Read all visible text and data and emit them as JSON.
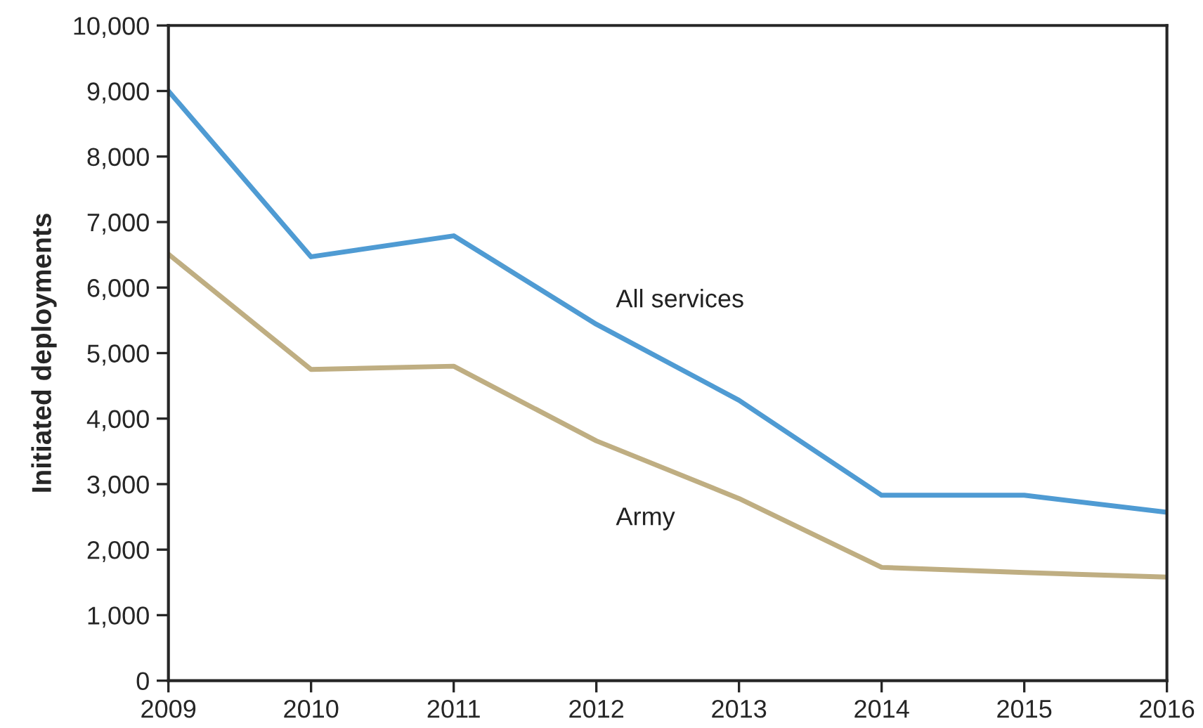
{
  "chart_data": {
    "type": "line",
    "ylabel": "Initiated deployments",
    "x": [
      2009,
      2010,
      2011,
      2012,
      2013,
      2014,
      2015,
      2016
    ],
    "series": [
      {
        "name": "All services",
        "color": "#4f9bd3",
        "values": [
          9000,
          6470,
          6790,
          5440,
          4280,
          2830,
          2830,
          2570
        ]
      },
      {
        "name": "Army",
        "color": "#bfae82",
        "values": [
          6510,
          4750,
          4800,
          3660,
          2780,
          1730,
          1650,
          1580
        ]
      }
    ],
    "xlim": [
      2009,
      2016
    ],
    "xticks": [
      2009,
      2010,
      2011,
      2012,
      2013,
      2014,
      2015,
      2016
    ],
    "ylim": [
      0,
      10000
    ],
    "yticks": [
      {
        "value": 0,
        "label": "0"
      },
      {
        "value": 1000,
        "label": "1,000"
      },
      {
        "value": 2000,
        "label": "2,000"
      },
      {
        "value": 3000,
        "label": "3,000"
      },
      {
        "value": 4000,
        "label": "4,000"
      },
      {
        "value": 5000,
        "label": "5,000"
      },
      {
        "value": 6000,
        "label": "6,000"
      },
      {
        "value": 7000,
        "label": "7,000"
      },
      {
        "value": 8000,
        "label": "8,000"
      },
      {
        "value": 9000,
        "label": "9,000"
      },
      {
        "value": 10000,
        "label": "10,000"
      }
    ],
    "grid": false,
    "legend": false,
    "marker": "none",
    "line_style": "solid"
  }
}
